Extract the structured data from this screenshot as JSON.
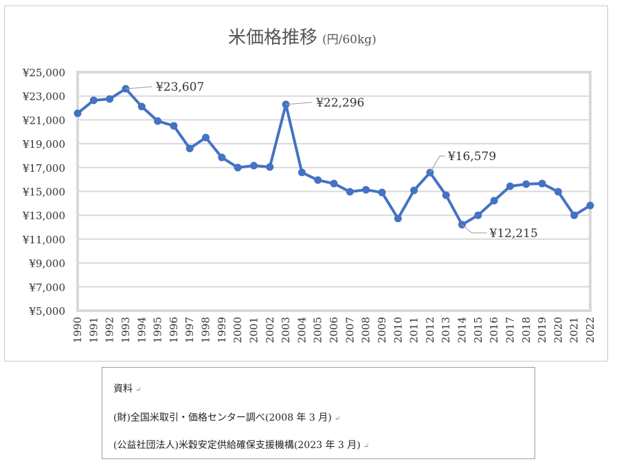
{
  "chart_data": {
    "type": "line",
    "title": "米価格推移",
    "subtitle": "(円/60kg)",
    "x": [
      1990,
      1991,
      1992,
      1993,
      1994,
      1995,
      1996,
      1997,
      1998,
      1999,
      2000,
      2001,
      2002,
      2003,
      2004,
      2005,
      2006,
      2007,
      2008,
      2009,
      2010,
      2011,
      2012,
      2013,
      2014,
      2015,
      2016,
      2017,
      2018,
      2019,
      2020,
      2021,
      2022
    ],
    "values": [
      21550,
      22640,
      22750,
      23607,
      22120,
      20900,
      20500,
      18600,
      19520,
      17850,
      17000,
      17160,
      17050,
      22296,
      16590,
      15950,
      15660,
      14970,
      15140,
      14910,
      12730,
      15090,
      16579,
      14680,
      12215,
      13000,
      14220,
      15430,
      15610,
      15660,
      14970,
      13000,
      13820
    ],
    "ylim": [
      5000,
      25000
    ],
    "yticks": [
      5000,
      7000,
      9000,
      11000,
      13000,
      15000,
      17000,
      19000,
      21000,
      23000,
      25000
    ],
    "ytick_labels": [
      "¥5,000",
      "¥7,000",
      "¥9,000",
      "¥11,000",
      "¥13,000",
      "¥15,000",
      "¥17,000",
      "¥19,000",
      "¥21,000",
      "¥23,000",
      "¥25,000"
    ],
    "annotations": [
      {
        "x": 1993,
        "label": "¥23,607"
      },
      {
        "x": 2003,
        "label": "¥22,296"
      },
      {
        "x": 2012,
        "label": "¥16,579"
      },
      {
        "x": 2014,
        "label": "¥12,215"
      }
    ],
    "grid": true,
    "line_color": "#4472c4"
  },
  "note": {
    "heading": "資料",
    "lines": [
      "(財)全国米取引・価格センター調べ(2008 年 3 月)",
      "(公益社団法人)米穀安定供給確保支援機構(2023 年 3 月)"
    ],
    "return_mark": "↵"
  }
}
